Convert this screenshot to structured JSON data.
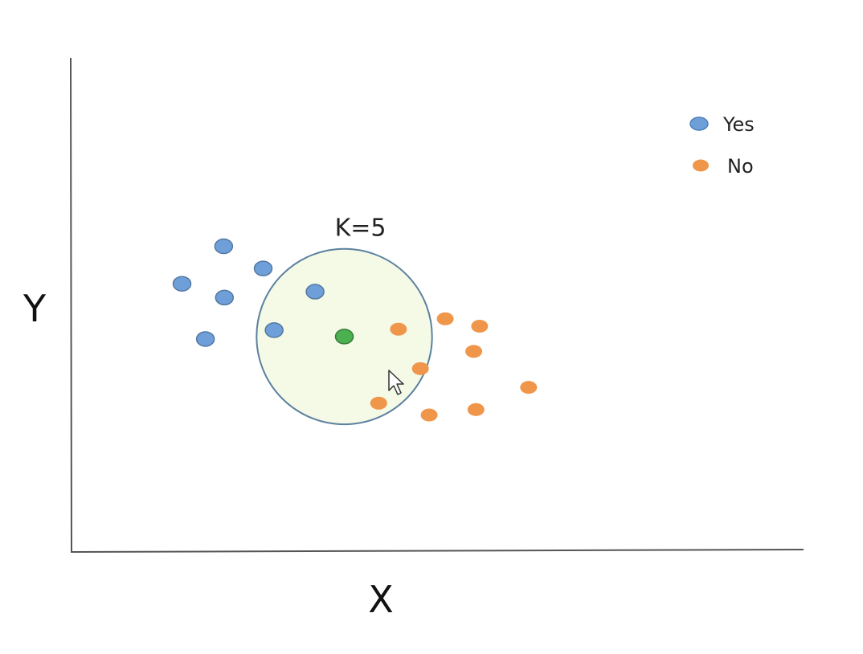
{
  "chart_data": {
    "type": "scatter",
    "xlabel": "X",
    "ylabel": "Y",
    "xlim": [
      0,
      100
    ],
    "ylim": [
      0,
      100
    ],
    "grid": false,
    "legend_position": "top-right",
    "series": [
      {
        "name": "Yes",
        "color": "#6f9fd8",
        "points": [
          {
            "x": 20.7,
            "y": 61.8
          },
          {
            "x": 15.0,
            "y": 54.2
          },
          {
            "x": 20.8,
            "y": 51.4
          },
          {
            "x": 26.1,
            "y": 57.3
          },
          {
            "x": 33.2,
            "y": 52.6
          },
          {
            "x": 18.2,
            "y": 43.0
          },
          {
            "x": 27.6,
            "y": 44.8
          }
        ]
      },
      {
        "name": "No",
        "color": "#f0964a",
        "points": [
          {
            "x": 44.6,
            "y": 45.0
          },
          {
            "x": 51.0,
            "y": 47.1
          },
          {
            "x": 55.7,
            "y": 45.6
          },
          {
            "x": 54.9,
            "y": 40.5
          },
          {
            "x": 47.6,
            "y": 37.0
          },
          {
            "x": 41.9,
            "y": 30.0
          },
          {
            "x": 48.8,
            "y": 27.6
          },
          {
            "x": 55.2,
            "y": 28.7
          },
          {
            "x": 62.4,
            "y": 33.2
          }
        ]
      }
    ],
    "query_point": {
      "x": 37.2,
      "y": 43.5,
      "color": "#4caf50"
    },
    "neighborhood": {
      "center_x": 37.2,
      "center_y": 43.5,
      "radius": 12.0,
      "label": "K=5",
      "fill": "#f4fae6",
      "stroke": "#5b80a0"
    },
    "legend": [
      {
        "label": "Yes",
        "color": "#6f9fd8"
      },
      {
        "label": "No",
        "color": "#f0964a"
      }
    ]
  }
}
